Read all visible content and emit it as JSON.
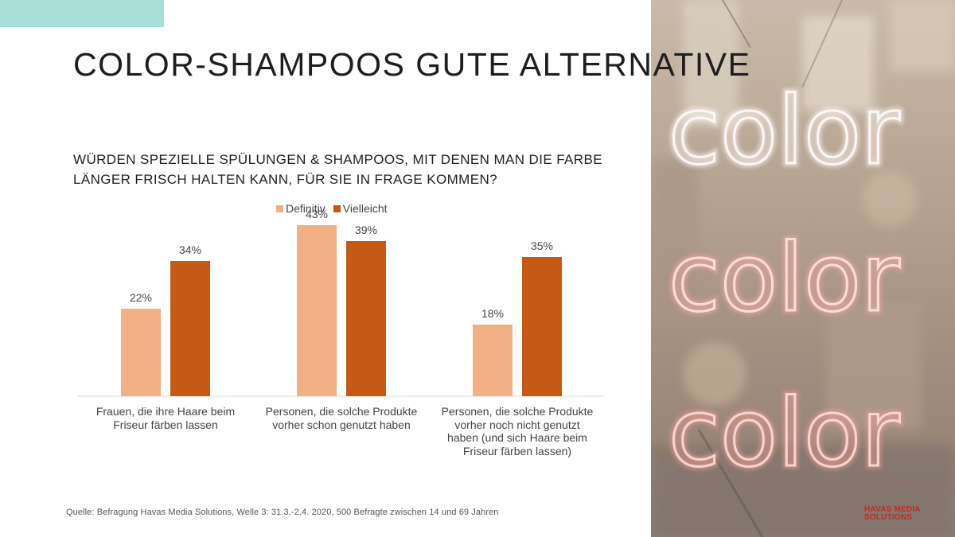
{
  "colors": {
    "accent_bar": "#a8dfd9",
    "series_definitiv": "#f2b084",
    "series_vielleicht": "#c45a15",
    "logo": "#c8281e"
  },
  "slide": {
    "title": "COLOR-SHAMPOOS GUTE ALTERNATIVE",
    "question": "WÜRDEN SPEZIELLE SPÜLUNGEN & SHAMPOOS, MIT DENEN MAN DIE FARBE LÄNGER FRISCH HALTEN KANN, FÜR SIE IN FRAGE KOMMEN?",
    "source": "Quelle: Befragung Havas Media Solutions, Welle 3: 31.3.-2.4. 2020, 500 Befragte zwischen 14 und 69 Jahren",
    "logo_line1": "HAVAS MEDIA",
    "logo_line2": "SOLUTIONS"
  },
  "photo": {
    "neon_words": [
      "color",
      "color",
      "color"
    ]
  },
  "chart_data": {
    "type": "bar",
    "title": "",
    "categories": [
      "Frauen, die ihre Haare beim Friseur färben lassen",
      "Personen, die solche Produkte vorher schon genutzt haben",
      "Personen, die solche Produkte vorher noch nicht genutzt haben (und sich Haare beim Friseur färben lassen)"
    ],
    "series": [
      {
        "name": "Definitiv",
        "values": [
          22,
          43,
          18
        ],
        "labels": [
          "22%",
          "43%",
          "18%"
        ]
      },
      {
        "name": "Vielleicht",
        "values": [
          34,
          39,
          35
        ],
        "labels": [
          "34%",
          "39%",
          "35%"
        ]
      }
    ],
    "ylim": [
      0,
      50
    ],
    "legend_position": "top-center",
    "grid": false
  }
}
